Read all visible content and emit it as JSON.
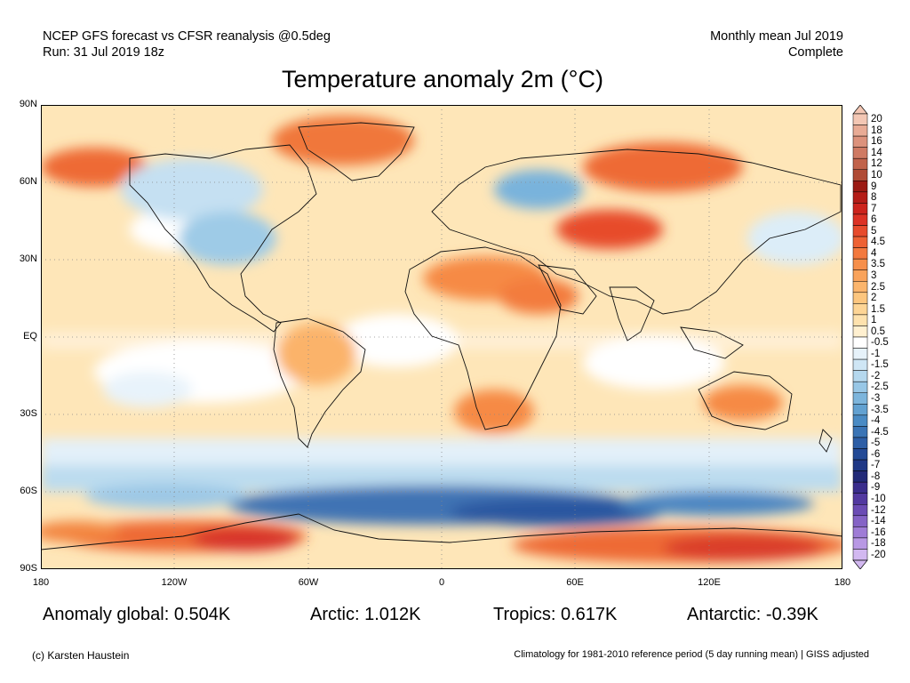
{
  "header": {
    "left_line1": "NCEP GFS forecast vs CFSR reanalysis @0.5deg",
    "left_line2": "Run: 31 Jul 2019 18z",
    "right_line1": "Monthly mean Jul 2019",
    "right_line2": "Complete"
  },
  "title": "Temperature anomaly 2m (°C)",
  "map": {
    "lat_labels": [
      "90N",
      "60N",
      "30N",
      "EQ",
      "30S",
      "60S",
      "90S"
    ],
    "lon_labels": [
      "180",
      "120W",
      "60W",
      "0",
      "60E",
      "120E",
      "180"
    ],
    "gridlines": "dotted"
  },
  "colorbar": {
    "levels": [
      {
        "label": "20",
        "color": "#f3c7b4"
      },
      {
        "label": "18",
        "color": "#e8ab95"
      },
      {
        "label": "16",
        "color": "#dc927c"
      },
      {
        "label": "14",
        "color": "#cf7a63"
      },
      {
        "label": "12",
        "color": "#c1634b"
      },
      {
        "label": "10",
        "color": "#b04b35"
      },
      {
        "label": "9",
        "color": "#9b1b14"
      },
      {
        "label": "8",
        "color": "#b41d18"
      },
      {
        "label": "7",
        "color": "#cc241d"
      },
      {
        "label": "6",
        "color": "#dc3225"
      },
      {
        "label": "5",
        "color": "#e74b2c"
      },
      {
        "label": "4.5",
        "color": "#ee6234"
      },
      {
        "label": "4",
        "color": "#f3793e"
      },
      {
        "label": "3.5",
        "color": "#f68f4b"
      },
      {
        "label": "3",
        "color": "#f9a35b"
      },
      {
        "label": "2.5",
        "color": "#fbb56c"
      },
      {
        "label": "2",
        "color": "#fcc67f"
      },
      {
        "label": "1.5",
        "color": "#fdd596"
      },
      {
        "label": "1",
        "color": "#fee2ae"
      },
      {
        "label": "0.5",
        "color": "#fff0d0"
      },
      {
        "label": "-0.5",
        "color": "#ffffff"
      },
      {
        "label": "-1",
        "color": "#e6f2fa"
      },
      {
        "label": "-1.5",
        "color": "#cfe6f5"
      },
      {
        "label": "-2",
        "color": "#b5d8ee"
      },
      {
        "label": "-2.5",
        "color": "#98c7e6"
      },
      {
        "label": "-3",
        "color": "#7db5dc"
      },
      {
        "label": "-3.5",
        "color": "#62a1d1"
      },
      {
        "label": "-4",
        "color": "#4a8bc4"
      },
      {
        "label": "-4.5",
        "color": "#3a74b5"
      },
      {
        "label": "-5",
        "color": "#2d5ea6"
      },
      {
        "label": "-6",
        "color": "#234a96"
      },
      {
        "label": "-7",
        "color": "#1f3886"
      },
      {
        "label": "-8",
        "color": "#222a78"
      },
      {
        "label": "-9",
        "color": "#3a2d8c"
      },
      {
        "label": "-10",
        "color": "#5239a0"
      },
      {
        "label": "-12",
        "color": "#6b4cb4"
      },
      {
        "label": "-14",
        "color": "#8563c6"
      },
      {
        "label": "-16",
        "color": "#9f7cd6"
      },
      {
        "label": "-18",
        "color": "#b898e4"
      },
      {
        "label": "-20",
        "color": "#d2b8f0"
      }
    ]
  },
  "stats": {
    "global": "Anomaly global: 0.504K",
    "arctic": "Arctic: 1.012K",
    "tropics": "Tropics: 0.617K",
    "antarctic": "Antarctic: -0.39K"
  },
  "footer": {
    "credit": "(c) Karsten Haustein",
    "note": "Climatology for 1981-2010 reference period (5 day running mean) | GISS adjusted"
  }
}
